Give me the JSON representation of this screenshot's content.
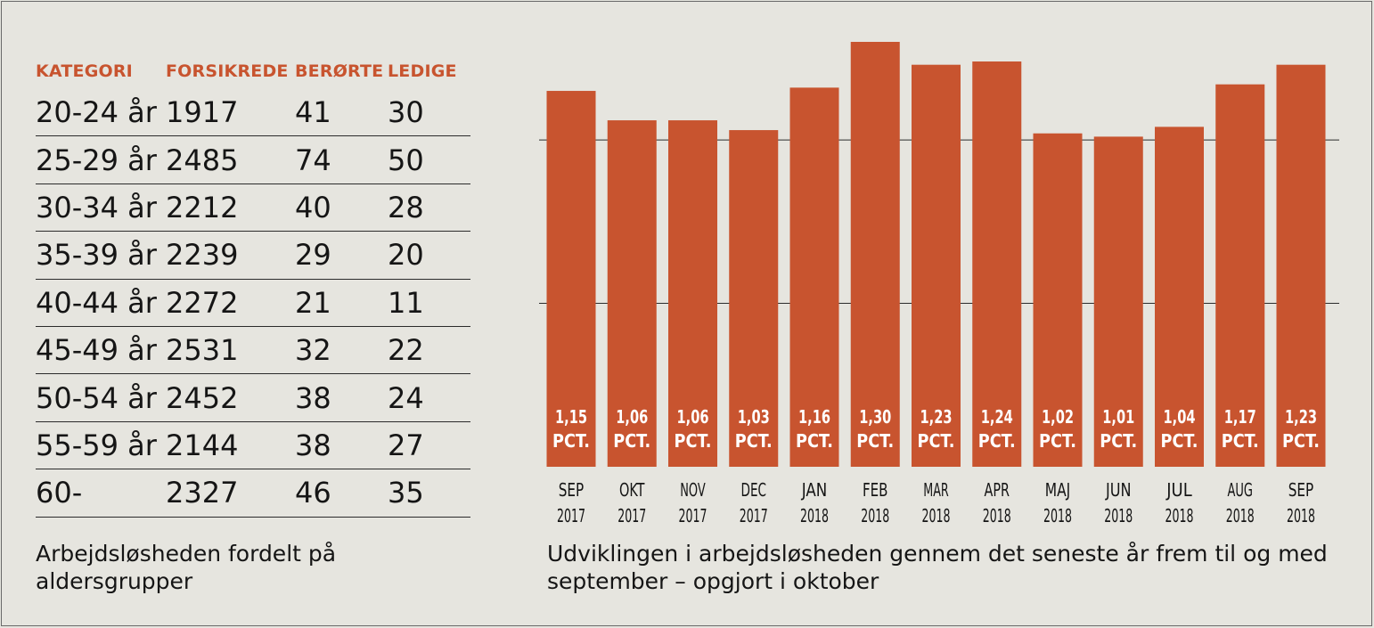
{
  "table": {
    "headers": [
      "KATEGORI",
      "FORSIKREDE",
      "BERØRTE",
      "LEDIGE"
    ],
    "rows": [
      [
        "20-24 år",
        "1917",
        "41",
        "30"
      ],
      [
        "25-29 år",
        "2485",
        "74",
        "50"
      ],
      [
        "30-34 år",
        "2212",
        "40",
        "28"
      ],
      [
        "35-39 år",
        "2239",
        "29",
        "20"
      ],
      [
        "40-44 år",
        "2272",
        "21",
        "11"
      ],
      [
        "45-49 år",
        "2531",
        "32",
        "22"
      ],
      [
        "50-54 år",
        "2452",
        "38",
        "24"
      ],
      [
        "55-59 år",
        "2144",
        "38",
        "27"
      ],
      [
        "60-",
        "2327",
        "46",
        "35"
      ]
    ],
    "caption": "Arbejdsløsheden fordelt på aldersgrupper"
  },
  "chart_data": {
    "type": "bar",
    "categories": [
      [
        "SEP",
        "2017"
      ],
      [
        "OKT",
        "2017"
      ],
      [
        "NOV",
        "2017"
      ],
      [
        "DEC",
        "2017"
      ],
      [
        "JAN",
        "2018"
      ],
      [
        "FEB",
        "2018"
      ],
      [
        "MAR",
        "2018"
      ],
      [
        "APR",
        "2018"
      ],
      [
        "MAJ",
        "2018"
      ],
      [
        "JUN",
        "2018"
      ],
      [
        "JUL",
        "2018"
      ],
      [
        "AUG",
        "2018"
      ],
      [
        "SEP",
        "2018"
      ]
    ],
    "values": [
      1.15,
      1.06,
      1.06,
      1.03,
      1.16,
      1.3,
      1.23,
      1.24,
      1.02,
      1.01,
      1.04,
      1.17,
      1.23
    ],
    "value_labels": [
      "1,15",
      "1,06",
      "1,06",
      "1,03",
      "1,16",
      "1,30",
      "1,23",
      "1,24",
      "1,02",
      "1,01",
      "1,04",
      "1,17",
      "1,23"
    ],
    "unit_label": "PCT.",
    "ylim": [
      0,
      1.3
    ],
    "gridlines": [
      0.5,
      1.0
    ],
    "bar_color": "#c8542f",
    "grid_color": "#2b2b2b",
    "caption": "Udviklingen i arbejdsløsheden gennem det seneste år frem til og med september – opgjort i oktober"
  }
}
